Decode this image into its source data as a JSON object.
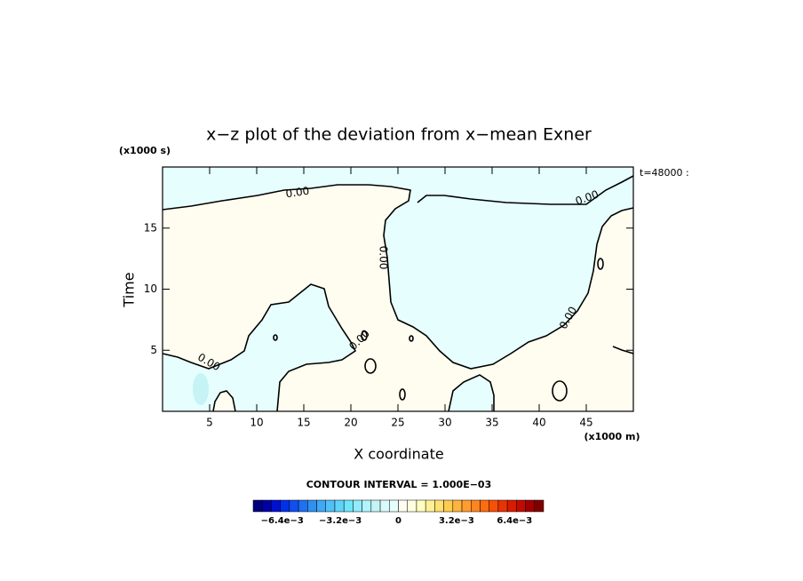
{
  "chart_data": {
    "type": "contour",
    "title": "x−z plot of the deviation from x−mean Exner",
    "xlabel": "X coordinate",
    "ylabel": "Time",
    "x_unit": "(x1000 m)",
    "y_unit": "(x1000 s)",
    "time_label": "t=48000 :",
    "xlim": [
      0,
      50
    ],
    "ylim": [
      0,
      20
    ],
    "xticks": [
      5,
      10,
      15,
      20,
      25,
      30,
      35,
      40,
      45
    ],
    "yticks": [
      5,
      10,
      15
    ],
    "contour_level": 0,
    "contour_label": "0.00",
    "colorbar": {
      "title": "CONTOUR INTERVAL = 1.000E−03",
      "lim": [
        -0.008,
        0.008
      ],
      "ticks": [
        {
          "value": -0.0064,
          "label": "−6.4e−3"
        },
        {
          "value": -0.0032,
          "label": "−3.2e−3"
        },
        0,
        {
          "value": 0.0032,
          "label": "3.2e−3"
        },
        {
          "value": 0.0064,
          "label": "6.4e−3"
        }
      ],
      "colors": [
        "#00007a",
        "#0000a8",
        "#0010d0",
        "#0030e8",
        "#1050f0",
        "#2070f0",
        "#3090f0",
        "#40a8f4",
        "#50c0f8",
        "#60d4f8",
        "#70e4fa",
        "#90ecfc",
        "#b0f4fc",
        "#c6f3f6",
        "#d8fafa",
        "#e6fefe",
        "#fffcf0",
        "#ffffe0",
        "#ffffc0",
        "#fff098",
        "#ffe070",
        "#ffcc50",
        "#ffb440",
        "#ff9c30",
        "#ff8420",
        "#ff6c10",
        "#f85008",
        "#e83404",
        "#d81c00",
        "#c00c00",
        "#a00000",
        "#800000"
      ]
    }
  }
}
